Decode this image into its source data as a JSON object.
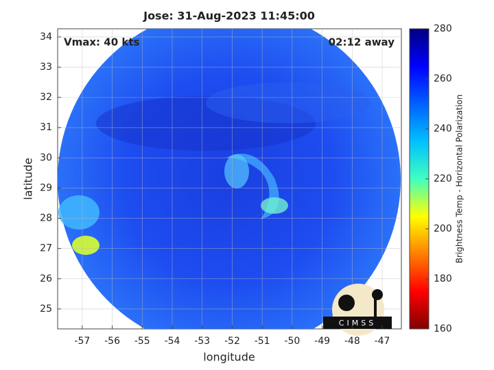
{
  "chart_data": {
    "type": "satellite",
    "title": "Jose: 31-Aug-2023 11:45:00",
    "xlabel": "longitude",
    "ylabel": "latitude",
    "xlim": [
      -57.82,
      -46.36
    ],
    "ylim": [
      24.34,
      34.27
    ],
    "xticks": [
      -57,
      -56,
      -55,
      -54,
      -53,
      -52,
      -51,
      -50,
      -49,
      -48,
      -47
    ],
    "yticks": [
      25,
      26,
      27,
      28,
      29,
      30,
      31,
      32,
      33,
      34
    ],
    "grid": true,
    "annotations": [
      "Vmax: 40 kts",
      "02:12 away"
    ],
    "logo": "CIMSS",
    "colorbar": {
      "label": "Brightness Temp - Horizontal Polarization",
      "lim": [
        160,
        280
      ],
      "ticks": [
        160,
        180,
        200,
        220,
        240,
        260,
        280
      ]
    }
  }
}
